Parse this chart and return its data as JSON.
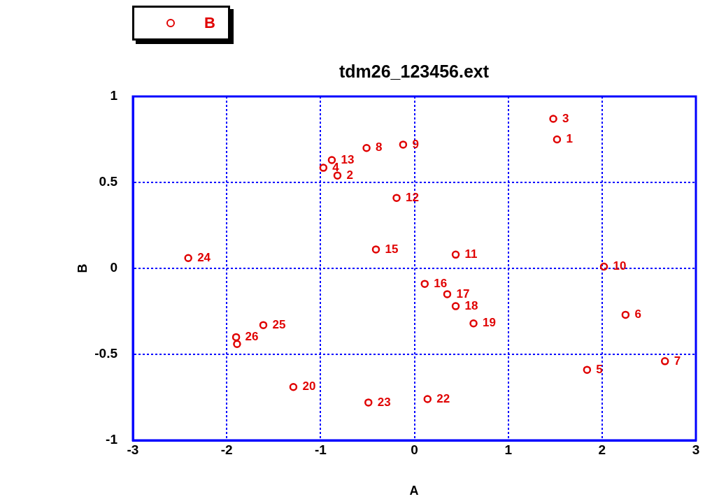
{
  "chart_data": {
    "type": "scatter",
    "title": "tdm26_123456.ext",
    "xlabel": "A",
    "ylabel": "B",
    "series": [
      {
        "name": "B",
        "color": "#e00000",
        "x": [
          1.52,
          -0.82,
          1.48,
          -0.97,
          1.84,
          2.25,
          2.67,
          -0.51,
          -0.12,
          2.02,
          0.44,
          -0.19,
          -0.88,
          -0.41,
          0.11,
          0.35,
          0.44,
          0.63,
          -1.29,
          0.14,
          -0.49,
          -2.41,
          -1.61,
          -1.9,
          -1.89
        ],
        "values": [
          0.75,
          0.54,
          0.87,
          0.585,
          -0.59,
          -0.27,
          -0.54,
          0.7,
          0.72,
          0.01,
          0.08,
          0.41,
          0.63,
          0.11,
          -0.09,
          -0.15,
          -0.22,
          -0.32,
          -0.69,
          -0.76,
          -0.78,
          0.06,
          -0.33,
          -0.4,
          -0.44
        ]
      }
    ],
    "annotations": [
      {
        "text": "1",
        "x": 1.52,
        "y": 0.75
      },
      {
        "text": "2",
        "x": -0.82,
        "y": 0.54
      },
      {
        "text": "3",
        "x": 1.48,
        "y": 0.87
      },
      {
        "text": "4",
        "x": -0.97,
        "y": 0.585
      },
      {
        "text": "5",
        "x": 1.84,
        "y": -0.59
      },
      {
        "text": "6",
        "x": 2.25,
        "y": -0.27
      },
      {
        "text": "7",
        "x": 2.67,
        "y": -0.54
      },
      {
        "text": "8",
        "x": -0.51,
        "y": 0.7
      },
      {
        "text": "9",
        "x": -0.12,
        "y": 0.72
      },
      {
        "text": "10",
        "x": 2.02,
        "y": 0.01
      },
      {
        "text": "11",
        "x": 0.44,
        "y": 0.08
      },
      {
        "text": "12",
        "x": -0.19,
        "y": 0.41
      },
      {
        "text": "13",
        "x": -0.88,
        "y": 0.63
      },
      {
        "text": "15",
        "x": -0.41,
        "y": 0.11
      },
      {
        "text": "16",
        "x": 0.11,
        "y": -0.09
      },
      {
        "text": "17",
        "x": 0.35,
        "y": -0.15
      },
      {
        "text": "18",
        "x": 0.44,
        "y": -0.22
      },
      {
        "text": "19",
        "x": 0.63,
        "y": -0.32
      },
      {
        "text": "20",
        "x": -1.29,
        "y": -0.69
      },
      {
        "text": "22",
        "x": 0.14,
        "y": -0.76
      },
      {
        "text": "23",
        "x": -0.49,
        "y": -0.78
      },
      {
        "text": "24",
        "x": -2.41,
        "y": 0.06
      },
      {
        "text": "25",
        "x": -1.61,
        "y": -0.33
      },
      {
        "text": "26",
        "x": -1.9,
        "y": -0.4
      }
    ],
    "xlim": [
      -3,
      3
    ],
    "xticks": [
      -3,
      -2,
      -1,
      0,
      1,
      2,
      3
    ],
    "ylim": [
      -1,
      1
    ],
    "yticks": [
      -1,
      -0.5,
      0,
      0.5,
      1
    ],
    "grid": true,
    "legend": "top left",
    "marker": "circle"
  }
}
